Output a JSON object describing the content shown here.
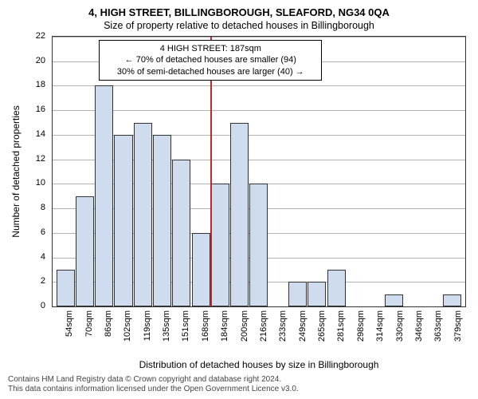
{
  "chart": {
    "type": "histogram",
    "title": "4, HIGH STREET, BILLINGBOROUGH, SLEAFORD, NG34 0QA",
    "subtitle": "Size of property relative to detached houses in Billingborough",
    "xlabel": "Distribution of detached houses by size in Billingborough",
    "ylabel": "Number of detached properties",
    "background_color": "#ffffff",
    "grid_color": "#b2b2b2",
    "axis_color": "#333333",
    "bar_fill": "#cfdcee",
    "bar_border": "#333333",
    "ref_line_color": "#c62828",
    "title_fontsize": 13,
    "subtitle_fontsize": 12,
    "label_fontsize": 12,
    "tick_fontsize": 11,
    "ylim": [
      0,
      22
    ],
    "ytick_step": 2,
    "yticks": [
      0,
      2,
      4,
      6,
      8,
      10,
      12,
      14,
      16,
      18,
      20,
      22
    ],
    "categories": [
      "54sqm",
      "70sqm",
      "86sqm",
      "102sqm",
      "119sqm",
      "135sqm",
      "151sqm",
      "168sqm",
      "184sqm",
      "200sqm",
      "216sqm",
      "233sqm",
      "249sqm",
      "265sqm",
      "281sqm",
      "298sqm",
      "314sqm",
      "330sqm",
      "346sqm",
      "363sqm",
      "379sqm"
    ],
    "values": [
      3,
      9,
      18,
      14,
      15,
      14,
      12,
      6,
      10,
      15,
      10,
      0,
      2,
      2,
      3,
      0,
      0,
      1,
      0,
      0,
      1
    ],
    "ref_line_index": 8,
    "annotation": {
      "line1": "4 HIGH STREET: 187sqm",
      "line2": "← 70% of detached houses are smaller (94)",
      "line3": "30% of semi-detached houses are larger (40) →"
    },
    "footer": {
      "line1": "Contains HM Land Registry data © Crown copyright and database right 2024.",
      "line2": "This data contains information licensed under the Open Government Licence v3.0."
    }
  }
}
